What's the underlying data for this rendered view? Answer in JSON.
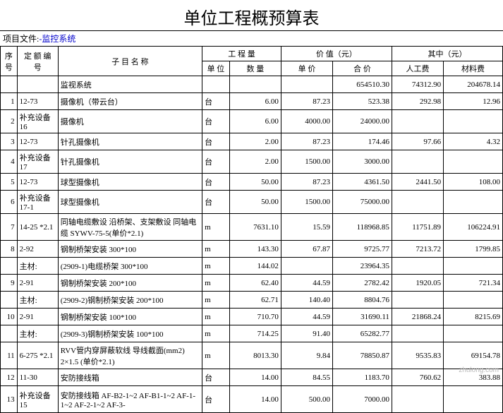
{
  "title": "单位工程概预算表",
  "project_label": "项目文件:",
  "project_value": "-监控系统",
  "headers": {
    "seq": "序号",
    "code": "定 额 编 号",
    "name": "子  目  名  称",
    "qty_group": "工 程 量",
    "unit": "单 位",
    "qty": "数 量",
    "value_group": "价 值（元）",
    "price": "单 价",
    "total": "合 价",
    "in_group": "其中（元）",
    "labor": "人工费",
    "material": "材料费"
  },
  "rows": [
    {
      "seq": "",
      "code": "",
      "name": "监视系统",
      "unit": "",
      "qty": "",
      "price": "",
      "total": "654510.30",
      "labor": "74312.90",
      "mat": "204678.14",
      "tall": false
    },
    {
      "seq": "1",
      "code": "12-73",
      "name": "摄像机（带云台）",
      "unit": "台",
      "qty": "6.00",
      "price": "87.23",
      "total": "523.38",
      "labor": "292.98",
      "mat": "12.96",
      "tall": false
    },
    {
      "seq": "2",
      "code": "补充设备16",
      "name": "摄像机",
      "unit": "台",
      "qty": "6.00",
      "price": "4000.00",
      "total": "24000.00",
      "labor": "",
      "mat": "",
      "tall": false
    },
    {
      "seq": "3",
      "code": "12-73",
      "name": "针孔摄像机",
      "unit": "台",
      "qty": "2.00",
      "price": "87.23",
      "total": "174.46",
      "labor": "97.66",
      "mat": "4.32",
      "tall": false
    },
    {
      "seq": "4",
      "code": "补充设备17",
      "name": "针孔摄像机",
      "unit": "台",
      "qty": "2.00",
      "price": "1500.00",
      "total": "3000.00",
      "labor": "",
      "mat": "",
      "tall": false
    },
    {
      "seq": "5",
      "code": "12-73",
      "name": "球型摄像机",
      "unit": "台",
      "qty": "50.00",
      "price": "87.23",
      "total": "4361.50",
      "labor": "2441.50",
      "mat": "108.00",
      "tall": false
    },
    {
      "seq": "6",
      "code": "补充设备17-1",
      "name": "球型摄像机",
      "unit": "台",
      "qty": "50.00",
      "price": "1500.00",
      "total": "75000.00",
      "labor": "",
      "mat": "",
      "tall": false
    },
    {
      "seq": "7",
      "code": "14-25 *2.1",
      "name": "同轴电缆敷设 沿桥架、支架敷设 同轴电缆 SYWV-75-5(单价*2.1)",
      "unit": "m",
      "qty": "7631.10",
      "price": "15.59",
      "total": "118968.85",
      "labor": "11751.89",
      "mat": "106224.91",
      "tall": true
    },
    {
      "seq": "8",
      "code": "2-92",
      "name": "钢制桥架安装 300*100",
      "unit": "m",
      "qty": "143.30",
      "price": "67.87",
      "total": "9725.77",
      "labor": "7213.72",
      "mat": "1799.85",
      "tall": false
    },
    {
      "seq": "",
      "code": "主材:",
      "name": "(2909-1)电缆桥架 300*100",
      "unit": "m",
      "qty": "144.02",
      "price": "",
      "total": "23964.35",
      "labor": "",
      "mat": "",
      "tall": false
    },
    {
      "seq": "9",
      "code": "2-91",
      "name": "钢制桥架安装 200*100",
      "unit": "m",
      "qty": "62.40",
      "price": "44.59",
      "total": "2782.42",
      "labor": "1920.05",
      "mat": "721.34",
      "tall": false
    },
    {
      "seq": "",
      "code": "主材:",
      "name": "(2909-2)钢制桥架安装 200*100",
      "unit": "m",
      "qty": "62.71",
      "price": "140.40",
      "total": "8804.76",
      "labor": "",
      "mat": "",
      "tall": false
    },
    {
      "seq": "10",
      "code": "2-91",
      "name": "钢制桥架安装 100*100",
      "unit": "m",
      "qty": "710.70",
      "price": "44.59",
      "total": "31690.11",
      "labor": "21868.24",
      "mat": "8215.69",
      "tall": false
    },
    {
      "seq": "",
      "code": "主材:",
      "name": "(2909-3)钢制桥架安装 100*100",
      "unit": "m",
      "qty": "714.25",
      "price": "91.40",
      "total": "65282.77",
      "labor": "",
      "mat": "",
      "tall": false
    },
    {
      "seq": "11",
      "code": "6-275 *2.1",
      "name": "RVV管内穿屏蔽软线 导线截面(mm2) 2×1.5 (单价*2.1)",
      "unit": "m",
      "qty": "8013.30",
      "price": "9.84",
      "total": "78850.87",
      "labor": "9535.83",
      "mat": "69154.78",
      "tall": true
    },
    {
      "seq": "12",
      "code": "11-30",
      "name": "安防接线箱",
      "unit": "台",
      "qty": "14.00",
      "price": "84.55",
      "total": "1183.70",
      "labor": "760.62",
      "mat": "383.88",
      "tall": false
    },
    {
      "seq": "13",
      "code": "补充设备15",
      "name": "安防接线箱 AF-B2-1~2 AF-B1-1~2 AF-1-1~2 AF-2-1~2 AF-3-",
      "unit": "台",
      "qty": "14.00",
      "price": "500.00",
      "total": "7000.00",
      "labor": "",
      "mat": "",
      "tall": true
    }
  ],
  "watermark": "zhulong.com"
}
